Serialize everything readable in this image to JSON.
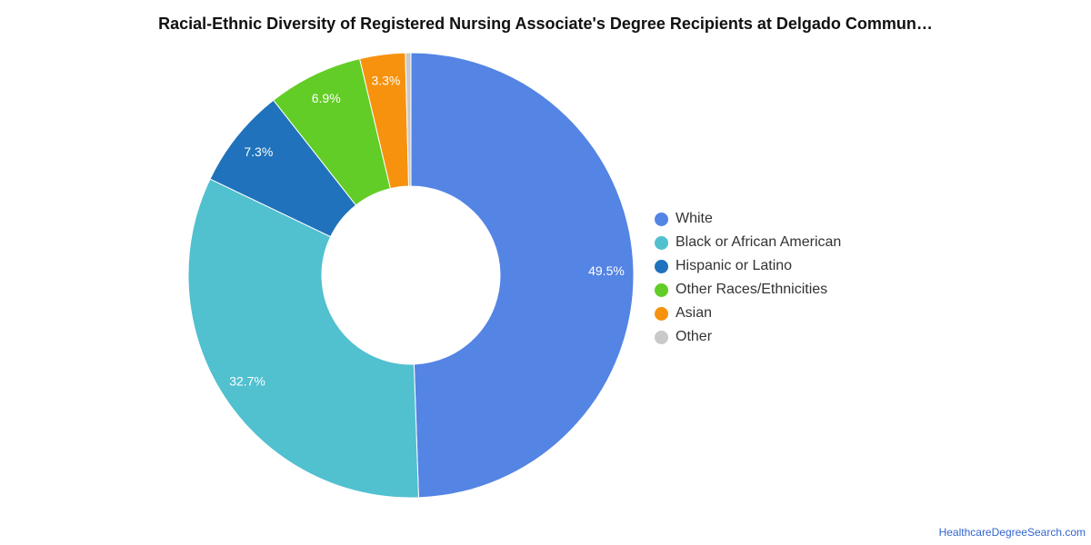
{
  "chart_data": {
    "type": "pie",
    "variant": "donut",
    "title": "Racial-Ethnic Diversity of Registered Nursing Associate's Degree Recipients at Delgado Commun…",
    "legend_position": "right",
    "slices": [
      {
        "label": "White",
        "value": 49.5,
        "data_label": "49.5%",
        "color": "#5484e4"
      },
      {
        "label": "Black or African American",
        "value": 32.7,
        "data_label": "32.7%",
        "color": "#51c0cf"
      },
      {
        "label": "Hispanic or Latino",
        "value": 7.3,
        "data_label": "7.3%",
        "color": "#1f72bb"
      },
      {
        "label": "Other Races/Ethnicities",
        "value": 6.9,
        "data_label": "6.9%",
        "color": "#62cd26"
      },
      {
        "label": "Asian",
        "value": 3.3,
        "data_label": "3.3%",
        "color": "#f7920e"
      },
      {
        "label": "Other",
        "value": 0.4,
        "data_label": "",
        "color": "#c9c9c9"
      }
    ]
  },
  "source": "HealthcareDegreeSearch.com"
}
